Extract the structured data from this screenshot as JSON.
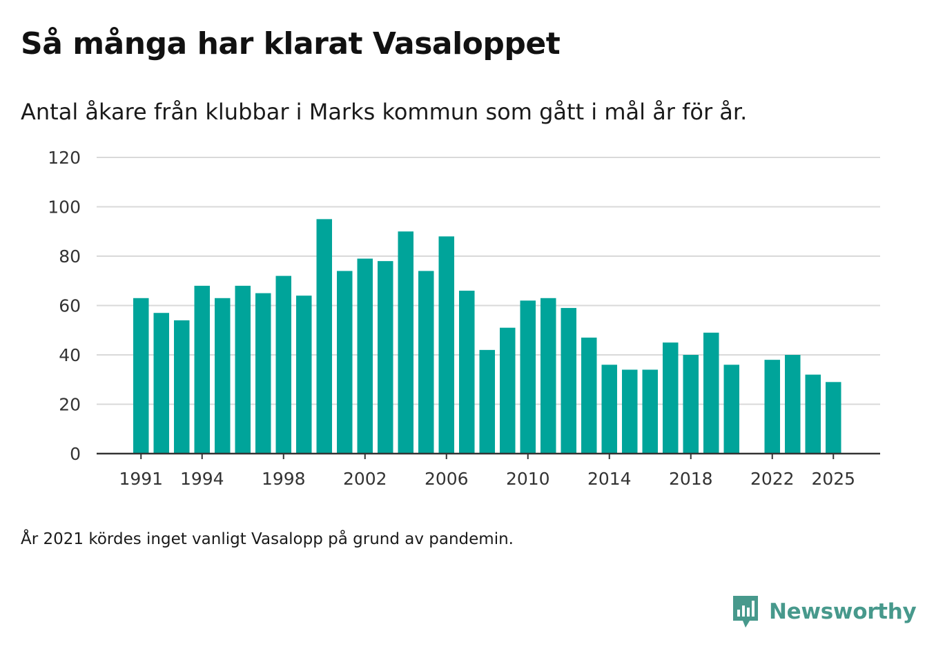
{
  "title": "Så många har klarat Vasaloppet",
  "subtitle": "Antal åkare från klubbar i Marks kommun som gått i mål år för år.",
  "note": "År 2021 kördes inget vanligt Vasalopp på grund av pandemin.",
  "brand": {
    "name": "Newsworthy",
    "color": "#47998c"
  },
  "colors": {
    "bar": "#00a49a",
    "grid": "#d9d9d9",
    "axis": "#333333",
    "text": "#333333"
  },
  "chart_data": {
    "type": "bar",
    "title": "Så många har klarat Vasaloppet",
    "xlabel": "",
    "ylabel": "",
    "ylim": [
      0,
      120
    ],
    "yticks": [
      0,
      20,
      40,
      60,
      80,
      100,
      120
    ],
    "xticks": [
      1991,
      1994,
      1998,
      2002,
      2006,
      2010,
      2014,
      2018,
      2022,
      2025
    ],
    "grid": true,
    "categories": [
      1991,
      1992,
      1993,
      1994,
      1995,
      1996,
      1997,
      1998,
      1999,
      2000,
      2001,
      2002,
      2003,
      2004,
      2005,
      2006,
      2007,
      2008,
      2009,
      2010,
      2011,
      2012,
      2013,
      2014,
      2015,
      2016,
      2017,
      2018,
      2019,
      2020,
      2021,
      2022,
      2023,
      2024,
      2025
    ],
    "values": [
      63,
      57,
      54,
      68,
      63,
      68,
      65,
      72,
      64,
      95,
      74,
      79,
      78,
      90,
      74,
      88,
      66,
      42,
      51,
      62,
      63,
      59,
      47,
      36,
      34,
      34,
      45,
      40,
      49,
      36,
      null,
      38,
      40,
      32,
      29
    ]
  }
}
